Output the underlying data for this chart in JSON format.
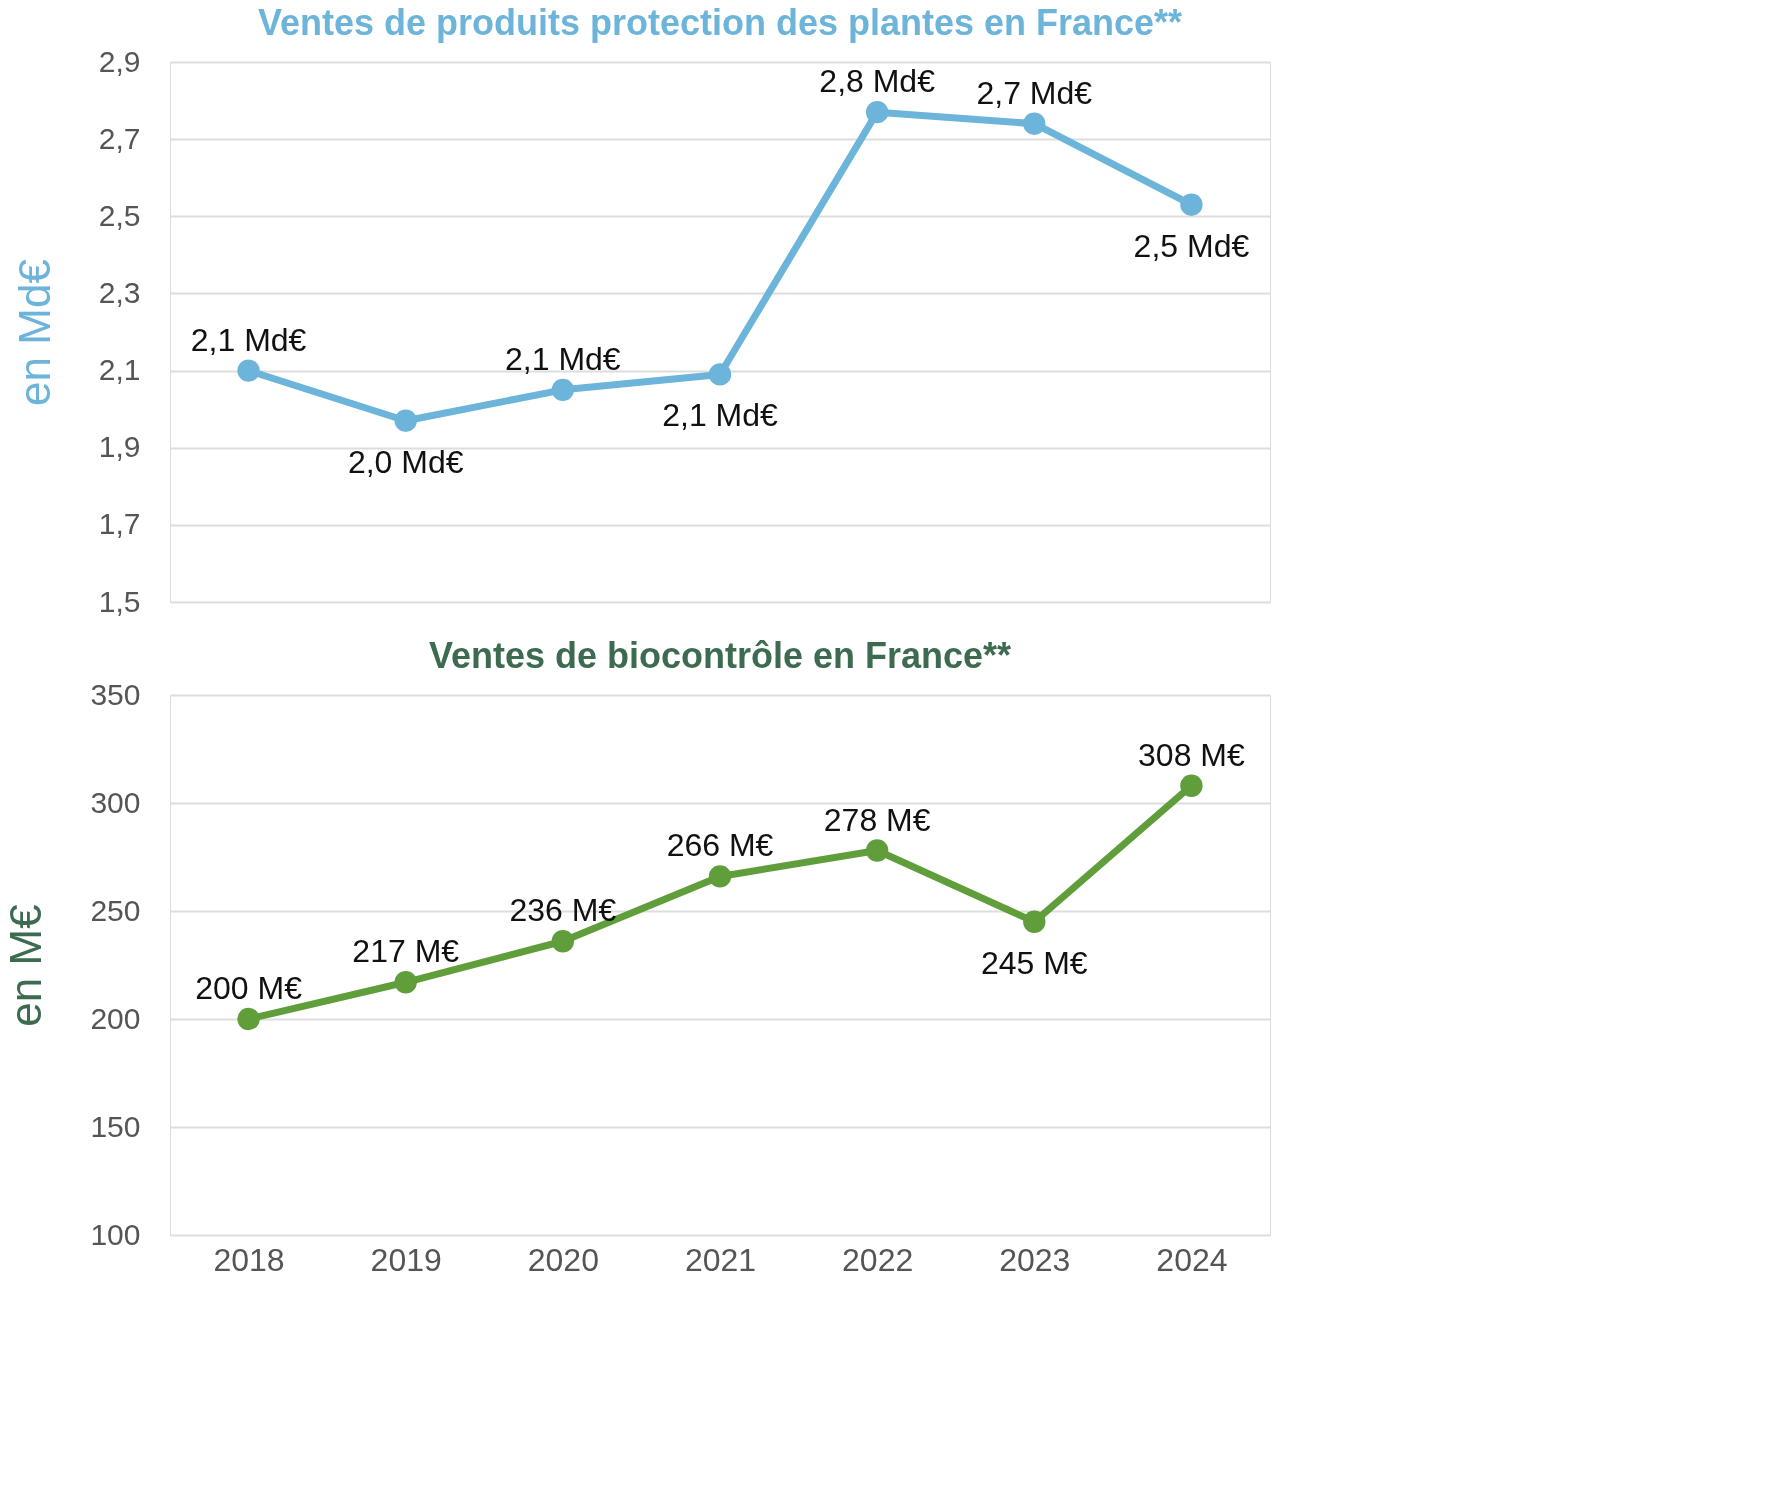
{
  "chart_data": [
    {
      "type": "line",
      "title": "Ventes de produits protection des plantes en France**",
      "ylabel": "en Md€",
      "categories": [
        "2018",
        "2019",
        "2020",
        "2021",
        "2022",
        "2023",
        "2024"
      ],
      "series": [
        {
          "color": "#6cb4d9",
          "values": [
            2.1,
            1.97,
            2.05,
            2.09,
            2.77,
            2.74,
            2.53
          ],
          "value_labels": [
            "2,1 Md€",
            "2,0 Md€",
            "2,1 Md€",
            "2,1 Md€",
            "2,8 Md€",
            "2,7 Md€",
            "2,5 Md€"
          ]
        }
      ],
      "ylim": [
        1.5,
        2.9
      ],
      "yticks": [
        {
          "value": 1.5,
          "label": "1,5"
        },
        {
          "value": 1.7,
          "label": "1,7"
        },
        {
          "value": 1.9,
          "label": "1,9"
        },
        {
          "value": 2.1,
          "label": "2,1"
        },
        {
          "value": 2.3,
          "label": "2,3"
        },
        {
          "value": 2.5,
          "label": "2,5"
        },
        {
          "value": 2.7,
          "label": "2,7"
        },
        {
          "value": 2.9,
          "label": "2,9"
        }
      ],
      "grid": "y",
      "marker": "circle",
      "tick_labels": "y"
    },
    {
      "type": "line",
      "title": "Ventes de biocontrôle en France**",
      "ylabel": "en M€",
      "categories": [
        "2018",
        "2019",
        "2020",
        "2021",
        "2022",
        "2023",
        "2024"
      ],
      "series": [
        {
          "color": "#5f9e3a",
          "values": [
            200,
            217,
            236,
            266,
            278,
            245,
            308
          ],
          "value_labels": [
            "200 M€",
            "217 M€",
            "236 M€",
            "266 M€",
            "278 M€",
            "245 M€",
            "308 M€"
          ]
        }
      ],
      "ylim": [
        100,
        350
      ],
      "yticks": [
        100,
        150,
        200,
        250,
        300,
        350
      ],
      "grid": "y",
      "marker": "circle"
    }
  ]
}
